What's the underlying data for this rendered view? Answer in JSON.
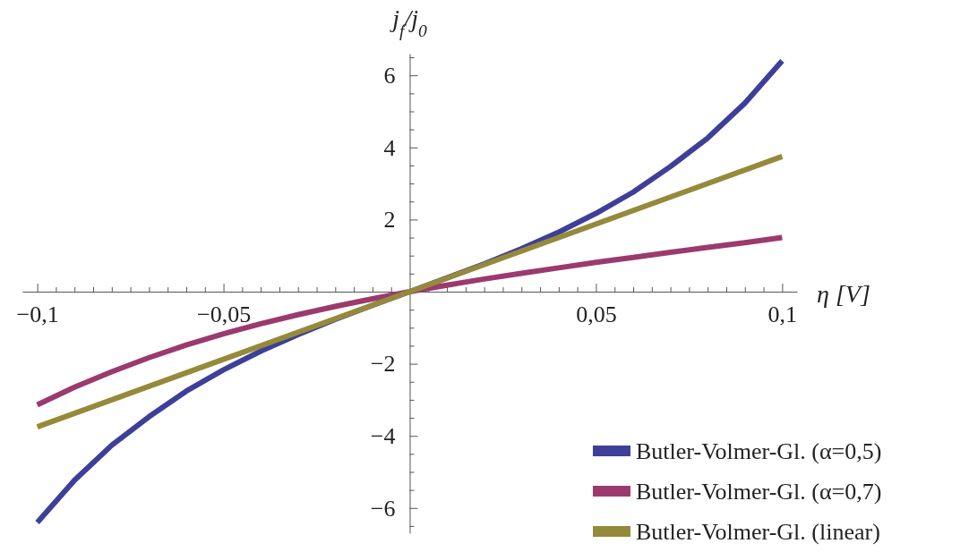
{
  "chart_data": {
    "type": "line",
    "xlabel": "η [V]",
    "ylabel": "j$_{f}$/j$_{0}$",
    "xlim": [
      -0.104,
      0.104
    ],
    "ylim": [
      -6.7,
      6.6
    ],
    "xticks": [
      {
        "value": -0.1,
        "label": "−0,1"
      },
      {
        "value": -0.095,
        "label": null
      },
      {
        "value": -0.09,
        "label": null
      },
      {
        "value": -0.085,
        "label": null
      },
      {
        "value": -0.08,
        "label": null
      },
      {
        "value": -0.075,
        "label": null
      },
      {
        "value": -0.07,
        "label": null
      },
      {
        "value": -0.065,
        "label": null
      },
      {
        "value": -0.06,
        "label": null
      },
      {
        "value": -0.055,
        "label": null
      },
      {
        "value": -0.05,
        "label": "−0,05"
      },
      {
        "value": -0.045,
        "label": null
      },
      {
        "value": -0.04,
        "label": null
      },
      {
        "value": -0.035,
        "label": null
      },
      {
        "value": -0.03,
        "label": null
      },
      {
        "value": -0.025,
        "label": null
      },
      {
        "value": -0.02,
        "label": null
      },
      {
        "value": -0.015,
        "label": null
      },
      {
        "value": -0.01,
        "label": null
      },
      {
        "value": -0.005,
        "label": null
      },
      {
        "value": 0.005,
        "label": null
      },
      {
        "value": 0.01,
        "label": null
      },
      {
        "value": 0.015,
        "label": null
      },
      {
        "value": 0.02,
        "label": null
      },
      {
        "value": 0.025,
        "label": null
      },
      {
        "value": 0.03,
        "label": null
      },
      {
        "value": 0.035,
        "label": null
      },
      {
        "value": 0.04,
        "label": null
      },
      {
        "value": 0.045,
        "label": null
      },
      {
        "value": 0.05,
        "label": "0,05"
      },
      {
        "value": 0.055,
        "label": null
      },
      {
        "value": 0.06,
        "label": null
      },
      {
        "value": 0.065,
        "label": null
      },
      {
        "value": 0.07,
        "label": null
      },
      {
        "value": 0.075,
        "label": null
      },
      {
        "value": 0.08,
        "label": null
      },
      {
        "value": 0.085,
        "label": null
      },
      {
        "value": 0.09,
        "label": null
      },
      {
        "value": 0.095,
        "label": null
      },
      {
        "value": 0.1,
        "label": "0,1"
      }
    ],
    "yticks": [
      {
        "value": -6.5,
        "label": null
      },
      {
        "value": -6,
        "label": "−6"
      },
      {
        "value": -5.5,
        "label": null
      },
      {
        "value": -5,
        "label": null
      },
      {
        "value": -4.5,
        "label": null
      },
      {
        "value": -4,
        "label": "−4"
      },
      {
        "value": -3.5,
        "label": null
      },
      {
        "value": -3,
        "label": null
      },
      {
        "value": -2.5,
        "label": null
      },
      {
        "value": -2,
        "label": "−2"
      },
      {
        "value": -1.5,
        "label": null
      },
      {
        "value": -1,
        "label": null
      },
      {
        "value": -0.5,
        "label": null
      },
      {
        "value": 0.5,
        "label": null
      },
      {
        "value": 1,
        "label": null
      },
      {
        "value": 1.5,
        "label": null
      },
      2,
      {
        "value": 2.5,
        "label": null
      },
      {
        "value": 3,
        "label": null
      },
      {
        "value": 3.5,
        "label": null
      },
      4,
      {
        "value": 4.5,
        "label": null
      },
      {
        "value": 5,
        "label": null
      },
      {
        "value": 5.5,
        "label": null
      },
      6,
      {
        "value": 6.5,
        "label": null
      }
    ],
    "grid": false,
    "legend": "bottom right",
    "line_style": "solid",
    "series": [
      {
        "name": "Butler-Volmer-Gl. (α=0,5)",
        "color": "#3d3f99",
        "x": [
          -0.1,
          -0.09,
          -0.08,
          -0.07,
          -0.06,
          -0.05,
          -0.04,
          -0.03,
          -0.02,
          -0.01,
          0,
          0.01,
          0.02,
          0.03,
          0.04,
          0.05,
          0.06,
          0.07,
          0.08,
          0.09,
          0.1
        ],
        "values": [
          -6.4,
          -5.23,
          -4.26,
          -3.47,
          -2.76,
          -2.17,
          -1.65,
          -1.19,
          -0.77,
          -0.38,
          0,
          0.38,
          0.77,
          1.19,
          1.65,
          2.17,
          2.76,
          3.47,
          4.26,
          5.23,
          6.4
        ]
      },
      {
        "name": "Butler-Volmer-Gl. (α=0,7)",
        "color": "#9b3a6e",
        "x": [
          -0.1,
          -0.09,
          -0.08,
          -0.07,
          -0.06,
          -0.05,
          -0.04,
          -0.03,
          -0.02,
          -0.01,
          0,
          0.01,
          0.02,
          0.03,
          0.04,
          0.05,
          0.06,
          0.07,
          0.08,
          0.09,
          0.1
        ],
        "values": [
          -3.14,
          -2.65,
          -2.22,
          -1.83,
          -1.48,
          -1.17,
          -0.89,
          -0.64,
          -0.41,
          -0.2,
          0,
          0.18,
          0.35,
          0.51,
          0.66,
          0.81,
          0.95,
          1.09,
          1.23,
          1.36,
          1.5
        ]
      },
      {
        "name": "Butler-Volmer-Gl. (linear)",
        "color": "#958a3a",
        "x": [
          -0.1,
          0,
          0.1
        ],
        "values": [
          -3.75,
          0,
          3.75
        ]
      }
    ]
  }
}
